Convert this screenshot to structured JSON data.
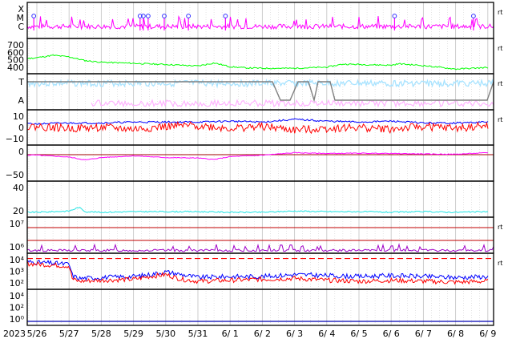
{
  "colors": {
    "magenta": "#ff00ff",
    "green": "#00ff00",
    "lightblue": "#a8e3ff",
    "pink": "#ffb4ff",
    "gray": "#808080",
    "red": "#ff0000",
    "blue": "#0000ff",
    "cyan": "#33e6e6",
    "purple": "#a000c8",
    "darkblue": "#0000b4",
    "grid": "#c8c8c8"
  },
  "chart_data": {
    "type": "line",
    "year_label": "2023",
    "x_ticks": [
      "5/26",
      "5/27",
      "5/28",
      "5/29",
      "5/30",
      "5/31",
      "6/ 1",
      "6/ 2",
      "6/ 3",
      "6/ 4",
      "6/ 5",
      "6/ 6",
      "6/ 7",
      "6/ 8",
      "6/ 9"
    ],
    "x_range_days": [
      0,
      15
    ],
    "panels": [
      {
        "id": "xmc",
        "y_labels": [
          "X",
          "M",
          "C"
        ],
        "right_tag": "rt",
        "events_day": [
          0.9,
          4.2,
          4.3,
          4.45,
          4.95,
          5.7,
          6.85,
          12.1,
          14.55
        ]
      },
      {
        "id": "speed",
        "y_labels": [
          "700",
          "600",
          "500",
          "400"
        ],
        "ylim": [
          350,
          750
        ],
        "right_tag": "rt",
        "series": [
          {
            "name": "speed",
            "color": "green",
            "x": [
              0,
              0.5,
              1,
              1.5,
              2,
              2.5,
              3,
              4,
              5,
              6,
              6.5,
              7,
              7.5,
              8,
              9,
              10,
              10.5,
              11,
              12,
              12.25,
              12.5,
              13,
              14,
              15
            ],
            "y": [
              490,
              510,
              530,
              560,
              540,
              490,
              470,
              455,
              440,
              420,
              460,
              410,
              395,
              390,
              390,
              405,
              445,
              440,
              430,
              450,
              440,
              425,
              380,
              400
            ]
          }
        ]
      },
      {
        "id": "ta",
        "y_labels": [
          "T",
          "A"
        ],
        "right_tag": "rt"
      },
      {
        "id": "bfield",
        "y_labels": [
          "10",
          "0",
          "−10"
        ],
        "ylim": [
          -17,
          17
        ],
        "right_tag": "rt",
        "series": [
          {
            "name": "bt",
            "color": "blue",
            "x": [
              0,
              1,
              2,
              3,
              4,
              5,
              6,
              7,
              8,
              9,
              10,
              11,
              12,
              13,
              14,
              15
            ],
            "y": [
              4,
              4,
              5,
              5,
              6,
              6,
              6,
              7,
              6,
              9,
              7,
              6,
              7,
              5,
              5,
              6
            ]
          },
          {
            "name": "bz",
            "color": "red",
            "x": [
              0,
              1,
              2,
              3,
              4,
              5,
              6,
              7,
              8,
              9,
              10,
              11,
              12,
              13,
              14,
              15
            ],
            "y": [
              -1,
              1,
              -1,
              0,
              -2,
              1,
              2,
              -1,
              1,
              -3,
              -1,
              0,
              -2,
              1,
              -1,
              2
            ]
          }
        ]
      },
      {
        "id": "dst",
        "y_labels": [
          "0",
          "−50"
        ],
        "ylim": [
          -100,
          30
        ],
        "right_tag": "",
        "series": [
          {
            "name": "dst",
            "color": "magenta",
            "x": [
              0,
              1,
              2,
              2.5,
              3,
              4,
              5,
              6,
              6.5,
              7,
              8,
              9,
              10,
              11,
              12,
              13,
              14,
              15
            ],
            "y": [
              0,
              -2,
              -10,
              -22,
              -12,
              -5,
              -12,
              -14,
              -20,
              -8,
              -2,
              8,
              5,
              6,
              5,
              3,
              2,
              8
            ]
          }
        ]
      },
      {
        "id": "kp",
        "y_labels": [
          "40",
          "20"
        ],
        "ylim": [
          0,
          50
        ],
        "right_tag": "",
        "series": [
          {
            "name": "kp",
            "color": "cyan",
            "x": [
              0,
              1,
              2,
              2.3,
              2.5,
              3,
              4,
              5,
              6,
              7,
              8,
              9,
              10,
              11,
              12,
              13,
              14,
              15
            ],
            "y": [
              4,
              4,
              6,
              12,
              5,
              4,
              5,
              5,
              5,
              4,
              4,
              6,
              5,
              5,
              4,
              5,
              4,
              5
            ]
          }
        ]
      },
      {
        "id": "proton",
        "y_labels": [
          "10⁷",
          "10⁶"
        ],
        "right_tag": "rt",
        "ref_lines_log": [
          7,
          6
        ]
      },
      {
        "id": "electron",
        "y_labels": [
          "10⁴",
          "10³",
          "10²"
        ],
        "right_tag": "rt",
        "threshold_log": 4,
        "ylim_log": [
          1,
          4.3
        ],
        "series": [
          {
            "name": "flux_blue",
            "color": "blue",
            "x": [
              0,
              0.5,
              1,
              1.5,
              2,
              2.1,
              2.3,
              3,
              4,
              4.5,
              5,
              5.5,
              6,
              7,
              8,
              9,
              10,
              11,
              12,
              13,
              14,
              15
            ],
            "y": [
              3.3,
              3.7,
              3.6,
              3.5,
              3.4,
              2.2,
              1.9,
              2.0,
              2.1,
              2.3,
              2.6,
              2.3,
              2.0,
              2.1,
              2.1,
              2.3,
              2.2,
              2.1,
              2.2,
              2.1,
              2.0,
              2.1
            ]
          },
          {
            "name": "flux_red",
            "color": "red",
            "x": [
              0,
              0.5,
              1,
              1.5,
              2,
              2.1,
              2.3,
              3,
              4,
              4.5,
              5,
              5.5,
              6,
              7,
              8,
              9,
              10,
              11,
              12,
              13,
              14,
              15
            ],
            "y": [
              3.2,
              3.5,
              3.4,
              3.3,
              3.2,
              1.8,
              1.6,
              1.7,
              1.8,
              2.1,
              2.3,
              1.8,
              1.6,
              1.7,
              1.8,
              1.9,
              1.7,
              1.6,
              1.7,
              1.6,
              1.5,
              1.6
            ]
          }
        ]
      },
      {
        "id": "neutron",
        "y_labels": [
          "10⁴",
          "10²",
          "10⁰"
        ],
        "right_tag": "",
        "series": [
          {
            "name": "flux",
            "color": "darkblue",
            "x": [
              0,
              15
            ],
            "y": [
              0,
              0
            ]
          }
        ]
      }
    ]
  }
}
